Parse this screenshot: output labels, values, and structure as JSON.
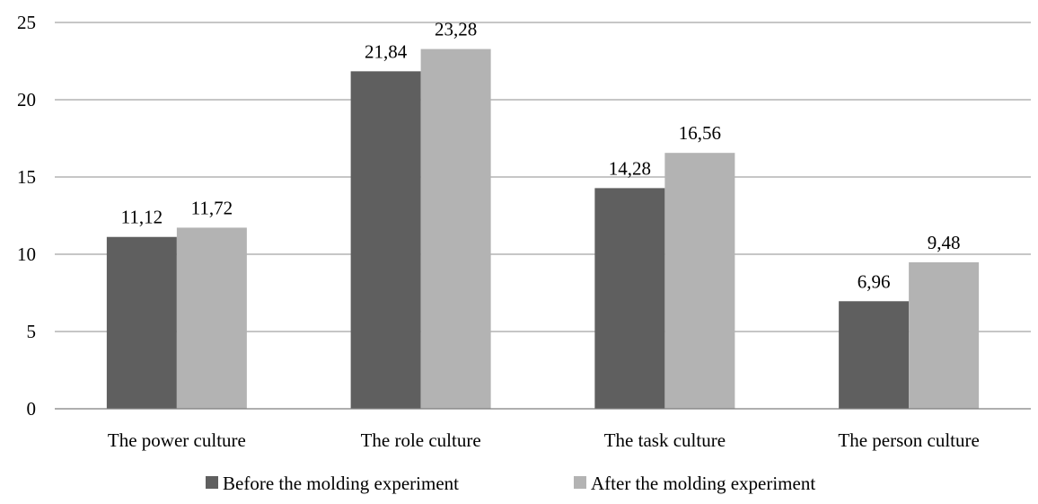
{
  "chart_data": {
    "type": "bar",
    "title": "",
    "xlabel": "",
    "ylabel": "",
    "categories": [
      "The power culture",
      "The role culture",
      "The task culture",
      "The person culture"
    ],
    "series": [
      {
        "name": "Before the molding experiment",
        "values": [
          11.12,
          21.84,
          14.28,
          6.96
        ],
        "labels": [
          "11,12",
          "21,84",
          "14,28",
          "6,96"
        ],
        "color": "#5f5f5f"
      },
      {
        "name": "After the molding experiment",
        "values": [
          11.72,
          23.28,
          16.56,
          9.48
        ],
        "labels": [
          "11,72",
          "23,28",
          "16,56",
          "9,48"
        ],
        "color": "#b3b3b3"
      }
    ],
    "ylim": [
      0,
      25
    ],
    "yticks": [
      "0",
      "5",
      "10",
      "15",
      "20",
      "25"
    ],
    "grid": true,
    "legend": "bottom"
  }
}
